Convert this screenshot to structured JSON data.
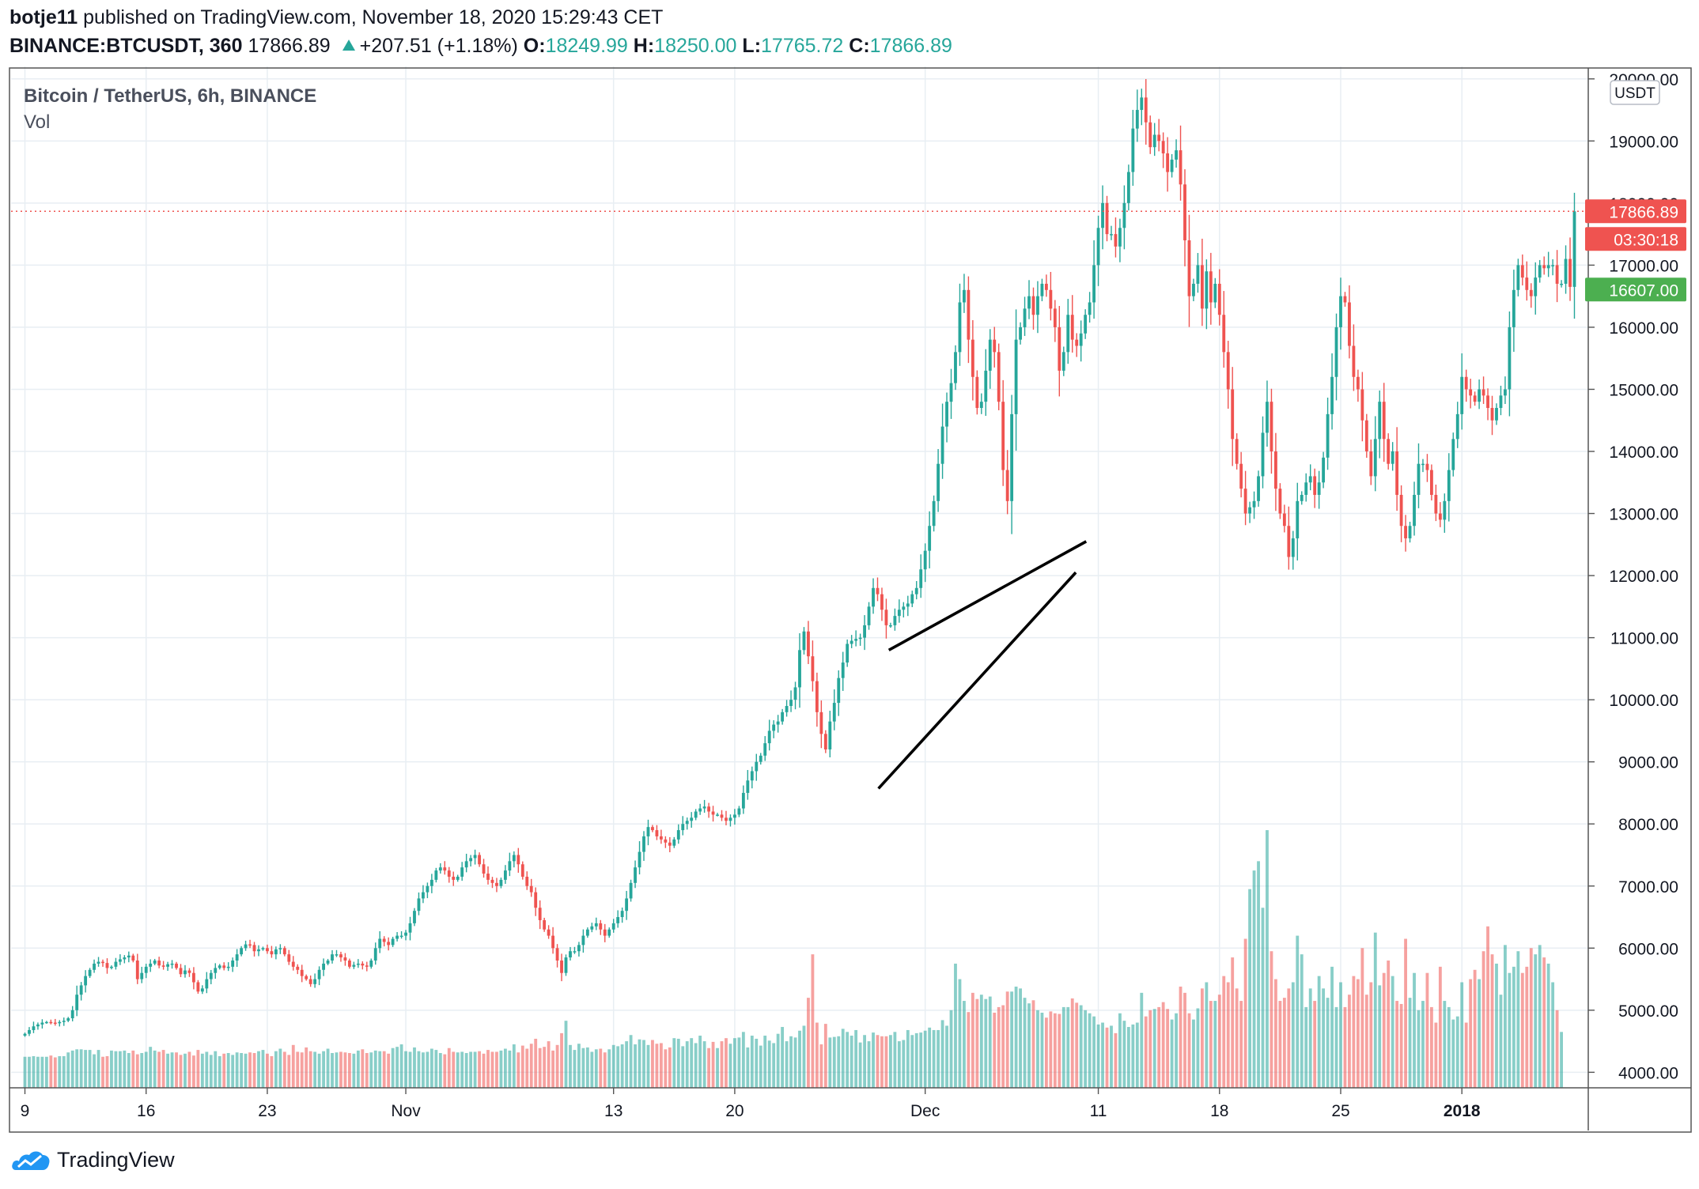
{
  "header": {
    "author": "botje11",
    "published_text": "published on TradingView.com, November 18, 2020 15:29:43 CET",
    "symbol": "BINANCE:BTCUSDT, 360",
    "last": "17866.89",
    "change": "+207.51 (+1.18%)",
    "o_label": "O:",
    "o_value": "18249.99",
    "h_label": "H:",
    "h_value": "18250.00",
    "l_label": "L:",
    "l_value": "17765.72",
    "c_label": "C:",
    "c_value": "17866.89"
  },
  "footer": {
    "brand": "TradingView"
  },
  "chart_data": {
    "type": "candlestick",
    "title": "Bitcoin / TetherUS, 6h, BINANCE",
    "indicator": "Vol",
    "currency_label": "USDT",
    "y_ticks": [
      "4000.00",
      "5000.00",
      "6000.00",
      "7000.00",
      "8000.00",
      "9000.00",
      "10000.00",
      "11000.00",
      "12000.00",
      "13000.00",
      "14000.00",
      "15000.00",
      "16000.00",
      "17000.00",
      "18000.00",
      "19000.00",
      "20000.00"
    ],
    "x_ticks": [
      {
        "label": "9",
        "day": 9
      },
      {
        "label": "16",
        "day": 16
      },
      {
        "label": "23",
        "day": 23
      },
      {
        "label": "Nov",
        "day": 31
      },
      {
        "label": "13",
        "day": 43
      },
      {
        "label": "20",
        "day": 50
      },
      {
        "label": "Dec",
        "day": 61
      },
      {
        "label": "11",
        "day": 71
      },
      {
        "label": "18",
        "day": 78
      },
      {
        "label": "25",
        "day": 85
      },
      {
        "label": "2018",
        "day": 92
      }
    ],
    "price_labels": [
      {
        "text": "17866.89",
        "value": 17866.89,
        "color": "#ef5350"
      },
      {
        "text": "03:30:18",
        "value": 17866.89,
        "color": "#ef5350",
        "below": true
      },
      {
        "text": "16607.00",
        "value": 16607.0,
        "color": "#4caf50"
      }
    ],
    "last_price": 17866.89,
    "start_day": 9,
    "candles_per_day": 4,
    "closes": [
      4620,
      4680,
      4740,
      4770,
      4800,
      4810,
      4800,
      4790,
      4810,
      4830,
      4870,
      5000,
      5250,
      5400,
      5550,
      5650,
      5750,
      5780,
      5760,
      5680,
      5700,
      5780,
      5820,
      5850,
      5880,
      5800,
      5500,
      5600,
      5700,
      5750,
      5800,
      5720,
      5700,
      5740,
      5750,
      5680,
      5580,
      5640,
      5600,
      5450,
      5300,
      5350,
      5500,
      5600,
      5680,
      5720,
      5680,
      5700,
      5800,
      5900,
      6000,
      6060,
      6050,
      5950,
      5980,
      6000,
      5950,
      5900,
      5980,
      6000,
      5900,
      5780,
      5700,
      5650,
      5550,
      5500,
      5420,
      5500,
      5650,
      5750,
      5800,
      5900,
      5900,
      5850,
      5800,
      5700,
      5730,
      5750,
      5720,
      5700,
      5800,
      6000,
      6150,
      6100,
      6050,
      6150,
      6200,
      6200,
      6250,
      6400,
      6600,
      6800,
      6900,
      7000,
      7100,
      7250,
      7300,
      7250,
      7150,
      7100,
      7150,
      7300,
      7400,
      7450,
      7500,
      7350,
      7200,
      7100,
      7050,
      7000,
      7100,
      7250,
      7400,
      7500,
      7350,
      7150,
      7000,
      6900,
      6650,
      6450,
      6300,
      6200,
      6000,
      5800,
      5600,
      5850,
      5950,
      5950,
      6050,
      6200,
      6300,
      6350,
      6400,
      6300,
      6200,
      6300,
      6400,
      6500,
      6600,
      6800,
      7050,
      7300,
      7550,
      7800,
      7950,
      7900,
      7800,
      7750,
      7700,
      7650,
      7750,
      7900,
      8000,
      8050,
      8100,
      8200,
      8250,
      8280,
      8200,
      8150,
      8150,
      8100,
      8050,
      8100,
      8150,
      8250,
      8500,
      8700,
      8850,
      9000,
      9100,
      9300,
      9500,
      9600,
      9650,
      9800,
      9900,
      10000,
      10200,
      10800,
      11100,
      10700,
      10300,
      9800,
      9450,
      9200,
      9650,
      9950,
      10350,
      10600,
      10900,
      10950,
      10980,
      11000,
      11200,
      11500,
      11800,
      11700,
      11450,
      11200,
      11200,
      11350,
      11450,
      11500,
      11550,
      11700,
      11800,
      12100,
      12400,
      12800,
      13200,
      13800,
      14400,
      14800,
      15100,
      15600,
      16400,
      16600,
      15800,
      15200,
      14700,
      14800,
      15300,
      15800,
      15600,
      14800,
      13700,
      13200,
      14600,
      15800,
      16000,
      16300,
      16500,
      16200,
      16500,
      16700,
      16600,
      16300,
      16000,
      15300,
      15600,
      16200,
      15800,
      15700,
      15900,
      16200,
      16400,
      17000,
      17600,
      18000,
      17500,
      17500,
      17300,
      17600,
      18000,
      18500,
      19200,
      19500,
      19700,
      19300,
      18900,
      19100,
      19000,
      18800,
      18500,
      18700,
      18850,
      18300,
      17400,
      16500,
      16700,
      17000,
      16300,
      16900,
      16400,
      16700,
      16200,
      15600,
      15000,
      14200,
      13800,
      13400,
      13000,
      13100,
      13200,
      13600,
      14300,
      14800,
      14000,
      13400,
      13000,
      12800,
      12300,
      12600,
      13200,
      13300,
      13500,
      13600,
      13300,
      13500,
      13900,
      14600,
      15200,
      16000,
      16500,
      16400,
      15700,
      15200,
      15000,
      14500,
      14000,
      13600,
      14200,
      14800,
      14200,
      13800,
      14000,
      13300,
      12800,
      12600,
      12800,
      13300,
      13800,
      13800,
      13700,
      13300,
      13000,
      12900,
      13200,
      13700,
      14200,
      14600,
      15200,
      15000,
      14900,
      14800,
      15000,
      14900,
      14700,
      14500,
      14700,
      14900,
      15000,
      16000,
      16600,
      17000,
      16800,
      16600,
      16500,
      16800,
      17000,
      16950,
      17000,
      17000,
      16700,
      16700,
      17100,
      16650,
      17866.89
    ],
    "volumes": [
      4250,
      4250,
      4260,
      4250,
      4250,
      4250,
      4270,
      4240,
      4260,
      4260,
      4320,
      4350,
      4370,
      4370,
      4360,
      4360,
      4290,
      4360,
      4250,
      4260,
      4350,
      4340,
      4340,
      4350,
      4310,
      4350,
      4290,
      4310,
      4330,
      4410,
      4350,
      4330,
      4360,
      4300,
      4320,
      4320,
      4280,
      4300,
      4330,
      4270,
      4360,
      4300,
      4330,
      4280,
      4340,
      4260,
      4300,
      4310,
      4280,
      4320,
      4310,
      4300,
      4320,
      4310,
      4340,
      4360,
      4300,
      4260,
      4340,
      4380,
      4330,
      4280,
      4440,
      4330,
      4320,
      4400,
      4340,
      4330,
      4300,
      4340,
      4380,
      4310,
      4320,
      4330,
      4320,
      4310,
      4300,
      4350,
      4370,
      4310,
      4320,
      4350,
      4340,
      4340,
      4300,
      4390,
      4410,
      4450,
      4340,
      4330,
      4400,
      4340,
      4320,
      4330,
      4380,
      4360,
      4310,
      4290,
      4390,
      4330,
      4320,
      4330,
      4310,
      4330,
      4330,
      4340,
      4300,
      4360,
      4330,
      4330,
      4350,
      4380,
      4350,
      4450,
      4320,
      4430,
      4380,
      4460,
      4540,
      4390,
      4410,
      4500,
      4350,
      4440,
      4630,
      4830,
      4440,
      4360,
      4460,
      4390,
      4400,
      4330,
      4370,
      4380,
      4320,
      4370,
      4440,
      4420,
      4450,
      4500,
      4600,
      4450,
      4530,
      4520,
      4440,
      4520,
      4460,
      4470,
      4370,
      4400,
      4550,
      4540,
      4420,
      4500,
      4550,
      4470,
      4590,
      4500,
      4390,
      4490,
      4390,
      4500,
      4550,
      4460,
      4550,
      4560,
      4650,
      4400,
      4590,
      4540,
      4430,
      4590,
      4510,
      4470,
      4620,
      4730,
      4500,
      4580,
      4560,
      4670,
      4750,
      5200,
      5900,
      4800,
      4450,
      4780,
      4560,
      4570,
      4580,
      4700,
      4650,
      4590,
      4680,
      4480,
      4600,
      4500,
      4640,
      4600,
      4580,
      4580,
      4600,
      4650,
      4500,
      4520,
      4680,
      4600,
      4630,
      4640,
      4670,
      4720,
      4680,
      4680,
      4840,
      4750,
      5000,
      5750,
      5500,
      5150,
      4970,
      5280,
      5180,
      5250,
      5180,
      5220,
      4960,
      5050,
      5080,
      5300,
      5300,
      5380,
      5350,
      5200,
      5110,
      5160,
      5000,
      4960,
      4880,
      4980,
      4950,
      4940,
      5050,
      5050,
      5190,
      5120,
      5080,
      5000,
      4950,
      4900,
      4770,
      4800,
      4720,
      4750,
      4630,
      4950,
      4830,
      4730,
      4770,
      4800,
      5280,
      4900,
      5000,
      5020,
      5050,
      5130,
      5020,
      4850,
      4950,
      5380,
      5280,
      4950,
      4850,
      5030,
      5350,
      5450,
      5150,
      5150,
      5250,
      5550,
      5450,
      5850,
      5350,
      5150,
      6150,
      6950,
      7250,
      7400,
      6650,
      7900,
      5950,
      5500,
      5150,
      5200,
      5350,
      5450,
      6200,
      5900,
      5050,
      5350,
      5150,
      5550,
      5350,
      5200,
      5700,
      5050,
      5450,
      5050,
      5250,
      5550,
      5500,
      6000,
      5250,
      5450,
      6250,
      5400,
      5600,
      5800,
      5550,
      5150,
      5100,
      6150,
      5200,
      5600,
      5000,
      5150,
      5600,
      5050,
      4800,
      5700,
      5150,
      5050,
      4850,
      4900,
      5450,
      4800,
      5500,
      5650,
      5500,
      5950,
      6350,
      5900,
      5750,
      5250,
      6050,
      5600,
      5700,
      5950,
      5600,
      5700,
      6000,
      5900,
      6050,
      5850,
      5750,
      5450,
      5000,
      4650
    ]
  }
}
